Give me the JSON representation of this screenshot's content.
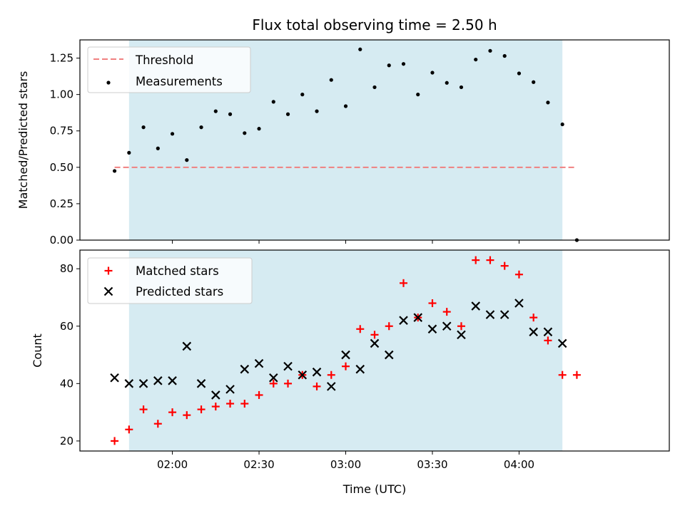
{
  "chart_data": [
    {
      "type": "scatter",
      "title": "Flux total observing time = 2.50 h",
      "xlabel": "",
      "ylabel": "Matched/Predicted stars",
      "ylim": [
        0,
        1.375
      ],
      "yticks": [
        "0.00",
        "0.25",
        "0.50",
        "0.75",
        "1.00",
        "1.25"
      ],
      "xlim": [
        "01:28",
        "04:52"
      ],
      "observing_window": [
        "01:45",
        "04:15"
      ],
      "shade_color": "#add8e6",
      "threshold": {
        "name": "Threshold",
        "value": 0.5,
        "x_range": [
          "01:40",
          "04:20"
        ],
        "color": "#f08080"
      },
      "legend_placement": "top-left",
      "series": [
        {
          "name": "Measurements",
          "color": "#000000",
          "marker": "dot",
          "x": [
            "01:40",
            "01:45",
            "01:50",
            "01:55",
            "02:00",
            "02:05",
            "02:10",
            "02:15",
            "02:20",
            "02:25",
            "02:30",
            "02:35",
            "02:40",
            "02:45",
            "02:50",
            "02:55",
            "03:00",
            "03:05",
            "03:10",
            "03:15",
            "03:20",
            "03:25",
            "03:30",
            "03:35",
            "03:40",
            "03:45",
            "03:50",
            "03:55",
            "04:00",
            "04:05",
            "04:10",
            "04:15",
            "04:20"
          ],
          "y": [
            0.475,
            0.6,
            0.775,
            0.63,
            0.73,
            0.55,
            0.775,
            0.885,
            0.865,
            0.735,
            0.765,
            0.95,
            0.865,
            1.0,
            0.885,
            1.1,
            0.92,
            1.31,
            1.05,
            1.2,
            1.21,
            1.0,
            1.15,
            1.08,
            1.05,
            1.24,
            1.3,
            1.265,
            1.145,
            1.085,
            0.945,
            0.795,
            0.0
          ]
        }
      ]
    },
    {
      "type": "scatter",
      "title": "",
      "xlabel": "Time (UTC)",
      "ylabel": "Count",
      "ylim": [
        16.5,
        86.5
      ],
      "yticks": [
        "20",
        "40",
        "60",
        "80"
      ],
      "xticks": [
        "02:00",
        "02:30",
        "03:00",
        "03:30",
        "04:00"
      ],
      "xlim": [
        "01:28",
        "04:52"
      ],
      "observing_window": [
        "01:45",
        "04:15"
      ],
      "shade_color": "#add8e6",
      "legend_placement": "top-left",
      "series": [
        {
          "name": "Matched stars",
          "color": "#ff0000",
          "marker": "plus",
          "x": [
            "01:40",
            "01:45",
            "01:50",
            "01:55",
            "02:00",
            "02:05",
            "02:10",
            "02:15",
            "02:20",
            "02:25",
            "02:30",
            "02:35",
            "02:40",
            "02:45",
            "02:50",
            "02:55",
            "03:00",
            "03:05",
            "03:10",
            "03:15",
            "03:20",
            "03:25",
            "03:30",
            "03:35",
            "03:40",
            "03:45",
            "03:50",
            "03:55",
            "04:00",
            "04:05",
            "04:10",
            "04:15",
            "04:20"
          ],
          "y": [
            20,
            24,
            31,
            26,
            30,
            29,
            31,
            32,
            33,
            33,
            36,
            40,
            40,
            43,
            39,
            43,
            46,
            59,
            57,
            60,
            75,
            63,
            68,
            65,
            60,
            83,
            83,
            81,
            78,
            63,
            55,
            43,
            43
          ]
        },
        {
          "name": "Predicted stars",
          "color": "#000000",
          "marker": "x",
          "x": [
            "01:40",
            "01:45",
            "01:50",
            "01:55",
            "02:00",
            "02:05",
            "02:10",
            "02:15",
            "02:20",
            "02:25",
            "02:30",
            "02:35",
            "02:40",
            "02:45",
            "02:50",
            "02:55",
            "03:00",
            "03:05",
            "03:10",
            "03:15",
            "03:20",
            "03:25",
            "03:30",
            "03:35",
            "03:40",
            "03:45",
            "03:50",
            "03:55",
            "04:00",
            "04:05",
            "04:10",
            "04:15"
          ],
          "y": [
            42,
            40,
            40,
            41,
            41,
            53,
            40,
            36,
            38,
            45,
            47,
            42,
            46,
            43,
            44,
            39,
            50,
            45,
            54,
            50,
            62,
            63,
            59,
            60,
            57,
            67,
            64,
            64,
            68,
            58,
            58,
            54
          ]
        }
      ]
    }
  ]
}
